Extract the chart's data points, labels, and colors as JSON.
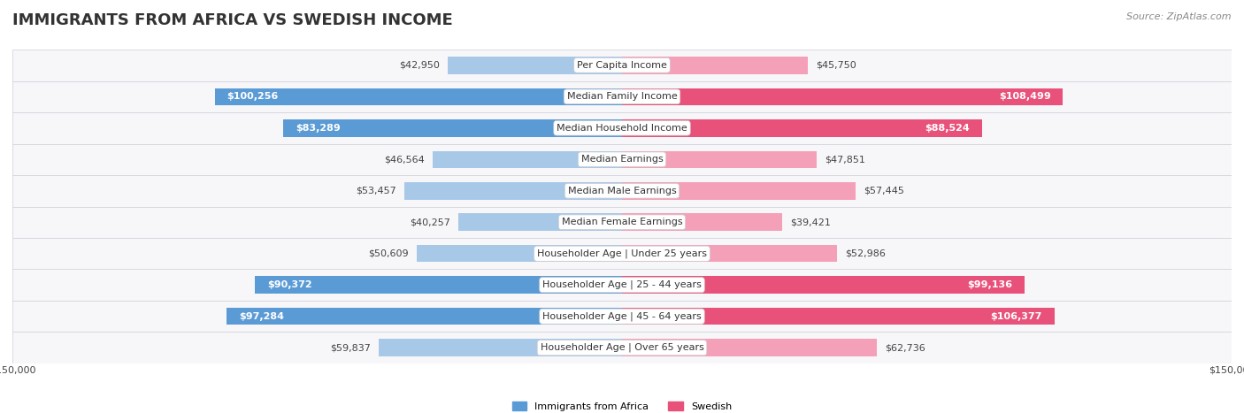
{
  "title": "IMMIGRANTS FROM AFRICA VS SWEDISH INCOME",
  "source": "Source: ZipAtlas.com",
  "categories": [
    "Per Capita Income",
    "Median Family Income",
    "Median Household Income",
    "Median Earnings",
    "Median Male Earnings",
    "Median Female Earnings",
    "Householder Age | Under 25 years",
    "Householder Age | 25 - 44 years",
    "Householder Age | 45 - 64 years",
    "Householder Age | Over 65 years"
  ],
  "africa_values": [
    42950,
    100256,
    83289,
    46564,
    53457,
    40257,
    50609,
    90372,
    97284,
    59837
  ],
  "swedish_values": [
    45750,
    108499,
    88524,
    47851,
    57445,
    39421,
    52986,
    99136,
    106377,
    62736
  ],
  "africa_labels": [
    "$42,950",
    "$100,256",
    "$83,289",
    "$46,564",
    "$53,457",
    "$40,257",
    "$50,609",
    "$90,372",
    "$97,284",
    "$59,837"
  ],
  "swedish_labels": [
    "$45,750",
    "$108,499",
    "$88,524",
    "$47,851",
    "$57,445",
    "$39,421",
    "$52,986",
    "$99,136",
    "$106,377",
    "$62,736"
  ],
  "max_value": 150000,
  "africa_color_light": "#a8c8e8",
  "africa_color_dark": "#5b9bd5",
  "swedish_color_light": "#f4a0b8",
  "swedish_color_dark": "#e8527a",
  "bg_color": "#f0f0f5",
  "row_bg": "#f7f7fa",
  "legend_africa": "Immigrants from Africa",
  "legend_swedish": "Swedish",
  "title_fontsize": 13,
  "source_fontsize": 8,
  "label_fontsize": 8,
  "category_fontsize": 8,
  "threshold_white_label": 60000
}
